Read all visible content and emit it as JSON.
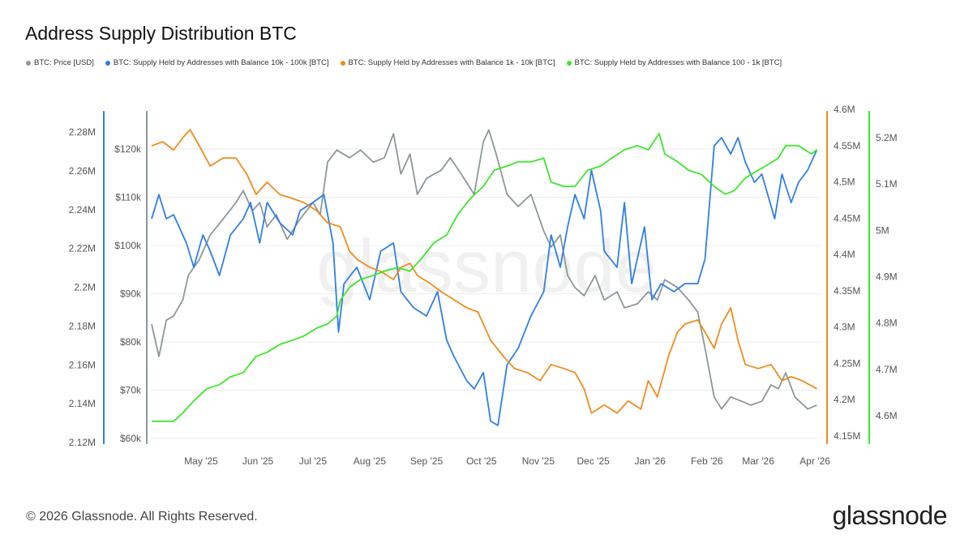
{
  "title": "Address Supply Distribution BTC",
  "footer": "© 2026 Glassnode. All Rights Reserved.",
  "logo": "glassnode",
  "watermark": "glassnode",
  "chart_data": {
    "type": "line",
    "title": "Address Supply Distribution BTC",
    "x_start_date": "2025-04-04",
    "x_unit": "days since start",
    "xlim": [
      0,
      364
    ],
    "x_ticks": [
      {
        "day": 27,
        "label": "May '25"
      },
      {
        "day": 58,
        "label": "Jun '25"
      },
      {
        "day": 88,
        "label": "Jul '25"
      },
      {
        "day": 119,
        "label": "Aug '25"
      },
      {
        "day": 150,
        "label": "Sep '25"
      },
      {
        "day": 180,
        "label": "Oct '25"
      },
      {
        "day": 211,
        "label": "Nov '25"
      },
      {
        "day": 241,
        "label": "Dec '25"
      },
      {
        "day": 272,
        "label": "Jan '26"
      },
      {
        "day": 303,
        "label": "Feb '26"
      },
      {
        "day": 331,
        "label": "Mar '26"
      },
      {
        "day": 362,
        "label": "Apr '26"
      }
    ],
    "axes": {
      "blue": {
        "ylim": [
          2.12,
          2.28
        ],
        "ticks": [
          2.12,
          2.14,
          2.16,
          2.18,
          2.2,
          2.22,
          2.24,
          2.26,
          2.28
        ],
        "labels": [
          "2.12M",
          "2.14M",
          "2.16M",
          "2.18M",
          "2.2M",
          "2.22M",
          "2.24M",
          "2.26M",
          "2.28M"
        ],
        "side": "left-outer"
      },
      "price": {
        "ylim": [
          60,
          120
        ],
        "ticks": [
          60,
          70,
          80,
          90,
          100,
          110,
          120
        ],
        "labels": [
          "$60k",
          "$70k",
          "$80k",
          "$90k",
          "$100k",
          "$110k",
          "$120k"
        ],
        "side": "left-inner"
      },
      "orange": {
        "ylim": [
          4.15,
          4.6
        ],
        "ticks": [
          4.15,
          4.2,
          4.25,
          4.3,
          4.35,
          4.4,
          4.45,
          4.5,
          4.55,
          4.6
        ],
        "labels": [
          "4.15M",
          "4.2M",
          "4.25M",
          "4.3M",
          "4.35M",
          "4.4M",
          "4.45M",
          "4.5M",
          "4.55M",
          "4.6M"
        ],
        "side": "right-inner"
      },
      "green": {
        "ylim": [
          4.6,
          5.2
        ],
        "ticks": [
          4.6,
          4.7,
          4.8,
          4.9,
          5.0,
          5.1,
          5.2
        ],
        "labels": [
          "4.6M",
          "4.7M",
          "4.8M",
          "4.9M",
          "5M",
          "5.1M",
          "5.2M"
        ],
        "side": "right-outer"
      }
    },
    "legend_placement": "top-left",
    "series": [
      {
        "name": "BTC: Price [USD]",
        "axis": "price",
        "color": "#8d979c",
        "points": [
          [
            0,
            83.7
          ],
          [
            4,
            77.0
          ],
          [
            8,
            84.5
          ],
          [
            12,
            85.4
          ],
          [
            17,
            88.7
          ],
          [
            20,
            93.8
          ],
          [
            26,
            97.1
          ],
          [
            32,
            102.2
          ],
          [
            39,
            105.5
          ],
          [
            46,
            108.9
          ],
          [
            50,
            111.4
          ],
          [
            55,
            107.2
          ],
          [
            59,
            108.9
          ],
          [
            63,
            103.9
          ],
          [
            68,
            106.4
          ],
          [
            74,
            101.3
          ],
          [
            81,
            105.5
          ],
          [
            88,
            108.9
          ],
          [
            92,
            106.4
          ],
          [
            96,
            117.3
          ],
          [
            101,
            119.8
          ],
          [
            108,
            118.2
          ],
          [
            114,
            119.8
          ],
          [
            121,
            117.3
          ],
          [
            127,
            118.2
          ],
          [
            132,
            123.2
          ],
          [
            136,
            114.8
          ],
          [
            141,
            119.0
          ],
          [
            145,
            110.6
          ],
          [
            150,
            113.9
          ],
          [
            154,
            114.8
          ],
          [
            158,
            115.6
          ],
          [
            163,
            118.2
          ],
          [
            169,
            114.8
          ],
          [
            176,
            110.6
          ],
          [
            181,
            121.5
          ],
          [
            184,
            124.0
          ],
          [
            188,
            119.0
          ],
          [
            194,
            110.6
          ],
          [
            200,
            108.1
          ],
          [
            207,
            110.6
          ],
          [
            214,
            103.0
          ],
          [
            218,
            99.7
          ],
          [
            223,
            102.2
          ],
          [
            227,
            93.8
          ],
          [
            231,
            91.3
          ],
          [
            236,
            89.6
          ],
          [
            242,
            93.8
          ],
          [
            247,
            88.7
          ],
          [
            254,
            90.4
          ],
          [
            258,
            87.1
          ],
          [
            265,
            87.9
          ],
          [
            271,
            90.4
          ],
          [
            276,
            88.7
          ],
          [
            280,
            92.9
          ],
          [
            287,
            91.3
          ],
          [
            293,
            88.7
          ],
          [
            298,
            86.2
          ],
          [
            302,
            78.7
          ],
          [
            307,
            68.6
          ],
          [
            311,
            66.1
          ],
          [
            316,
            68.6
          ],
          [
            322,
            67.7
          ],
          [
            327,
            66.9
          ],
          [
            333,
            67.7
          ],
          [
            338,
            71.1
          ],
          [
            342,
            70.3
          ],
          [
            346,
            73.6
          ],
          [
            351,
            68.6
          ],
          [
            358,
            66.1
          ],
          [
            363,
            66.9
          ]
        ]
      },
      {
        "name": "BTC: Supply Held by Addresses with Balance 10k - 100k [BTC]",
        "axis": "blue",
        "color": "#2f7fe6",
        "points": [
          [
            0,
            2.2353
          ],
          [
            4,
            2.2478
          ],
          [
            8,
            2.2353
          ],
          [
            12,
            2.2374
          ],
          [
            19,
            2.2228
          ],
          [
            23,
            2.2103
          ],
          [
            28,
            2.227
          ],
          [
            32,
            2.2186
          ],
          [
            37,
            2.2061
          ],
          [
            43,
            2.227
          ],
          [
            50,
            2.2353
          ],
          [
            54,
            2.2437
          ],
          [
            59,
            2.2228
          ],
          [
            63,
            2.2437
          ],
          [
            70,
            2.2332
          ],
          [
            77,
            2.227
          ],
          [
            81,
            2.2395
          ],
          [
            88,
            2.2437
          ],
          [
            94,
            2.2478
          ],
          [
            99,
            2.2228
          ],
          [
            102,
            2.1769
          ],
          [
            105,
            2.2019
          ],
          [
            112,
            2.2103
          ],
          [
            119,
            2.1936
          ],
          [
            125,
            2.2186
          ],
          [
            132,
            2.2228
          ],
          [
            136,
            2.1977
          ],
          [
            143,
            2.1894
          ],
          [
            150,
            2.1852
          ],
          [
            156,
            2.1977
          ],
          [
            161,
            2.1727
          ],
          [
            165,
            2.1643
          ],
          [
            172,
            2.1518
          ],
          [
            176,
            2.1476
          ],
          [
            181,
            2.156
          ],
          [
            185,
            2.1309
          ],
          [
            189,
            2.1288
          ],
          [
            194,
            2.1601
          ],
          [
            200,
            2.1685
          ],
          [
            207,
            2.1852
          ],
          [
            214,
            2.1977
          ],
          [
            218,
            2.227
          ],
          [
            223,
            2.2103
          ],
          [
            227,
            2.2311
          ],
          [
            231,
            2.2478
          ],
          [
            236,
            2.2353
          ],
          [
            240,
            2.2604
          ],
          [
            245,
            2.2395
          ],
          [
            247,
            2.2186
          ],
          [
            254,
            2.2103
          ],
          [
            258,
            2.2437
          ],
          [
            262,
            2.2019
          ],
          [
            269,
            2.2311
          ],
          [
            273,
            2.1936
          ],
          [
            278,
            2.2019
          ],
          [
            285,
            2.1977
          ],
          [
            291,
            2.2019
          ],
          [
            298,
            2.2019
          ],
          [
            302,
            2.2145
          ],
          [
            307,
            2.2729
          ],
          [
            311,
            2.2771
          ],
          [
            316,
            2.2687
          ],
          [
            320,
            2.2771
          ],
          [
            324,
            2.2645
          ],
          [
            329,
            2.2541
          ],
          [
            333,
            2.2583
          ],
          [
            340,
            2.2353
          ],
          [
            344,
            2.2583
          ],
          [
            349,
            2.2437
          ],
          [
            353,
            2.2541
          ],
          [
            358,
            2.2604
          ],
          [
            363,
            2.2708
          ]
        ]
      },
      {
        "name": "BTC: Supply Held by Addresses with Balance 1k - 10k [BTC]",
        "axis": "orange",
        "color": "#f08c1e",
        "points": [
          [
            0,
            4.5498
          ],
          [
            6,
            4.5554
          ],
          [
            12,
            4.5442
          ],
          [
            17,
            4.5609
          ],
          [
            21,
            4.5721
          ],
          [
            26,
            4.5498
          ],
          [
            32,
            4.5219
          ],
          [
            39,
            4.533
          ],
          [
            46,
            4.533
          ],
          [
            52,
            4.5107
          ],
          [
            57,
            4.4828
          ],
          [
            63,
            4.4996
          ],
          [
            70,
            4.4828
          ],
          [
            77,
            4.4772
          ],
          [
            83,
            4.4717
          ],
          [
            90,
            4.4605
          ],
          [
            96,
            4.4438
          ],
          [
            103,
            4.4382
          ],
          [
            108,
            4.4047
          ],
          [
            112,
            4.3935
          ],
          [
            119,
            4.3824
          ],
          [
            125,
            4.3768
          ],
          [
            132,
            4.3656
          ],
          [
            136,
            4.3824
          ],
          [
            141,
            4.388
          ],
          [
            145,
            4.3712
          ],
          [
            152,
            4.3601
          ],
          [
            158,
            4.3489
          ],
          [
            165,
            4.3377
          ],
          [
            172,
            4.3266
          ],
          [
            178,
            4.321
          ],
          [
            185,
            4.2819
          ],
          [
            192,
            4.2596
          ],
          [
            198,
            4.2429
          ],
          [
            205,
            4.2373
          ],
          [
            212,
            4.2261
          ],
          [
            218,
            4.2485
          ],
          [
            225,
            4.2429
          ],
          [
            231,
            4.2373
          ],
          [
            236,
            4.215
          ],
          [
            240,
            4.1815
          ],
          [
            247,
            4.1927
          ],
          [
            254,
            4.1815
          ],
          [
            260,
            4.1982
          ],
          [
            267,
            4.1871
          ],
          [
            271,
            4.2261
          ],
          [
            276,
            4.2038
          ],
          [
            282,
            4.2596
          ],
          [
            287,
            4.2931
          ],
          [
            291,
            4.3042
          ],
          [
            298,
            4.3098
          ],
          [
            302,
            4.2931
          ],
          [
            307,
            4.2708
          ],
          [
            311,
            4.3042
          ],
          [
            316,
            4.3266
          ],
          [
            320,
            4.2819
          ],
          [
            324,
            4.2485
          ],
          [
            331,
            4.2429
          ],
          [
            338,
            4.2485
          ],
          [
            344,
            4.2261
          ],
          [
            349,
            4.2317
          ],
          [
            355,
            4.2261
          ],
          [
            363,
            4.215
          ]
        ]
      },
      {
        "name": "BTC: Supply Held by Addresses with Balance 100 - 1k [BTC]",
        "axis": "green",
        "color": "#3de62a",
        "points": [
          [
            0,
            4.588
          ],
          [
            6,
            4.588
          ],
          [
            12,
            4.588
          ],
          [
            17,
            4.606
          ],
          [
            23,
            4.632
          ],
          [
            30,
            4.658
          ],
          [
            37,
            4.667
          ],
          [
            43,
            4.684
          ],
          [
            50,
            4.693
          ],
          [
            57,
            4.728
          ],
          [
            63,
            4.737
          ],
          [
            70,
            4.754
          ],
          [
            77,
            4.763
          ],
          [
            83,
            4.772
          ],
          [
            90,
            4.789
          ],
          [
            96,
            4.798
          ],
          [
            101,
            4.815
          ],
          [
            103,
            4.85
          ],
          [
            108,
            4.877
          ],
          [
            114,
            4.894
          ],
          [
            121,
            4.903
          ],
          [
            127,
            4.912
          ],
          [
            134,
            4.92
          ],
          [
            141,
            4.912
          ],
          [
            147,
            4.938
          ],
          [
            154,
            4.973
          ],
          [
            161,
            4.99
          ],
          [
            167,
            5.034
          ],
          [
            174,
            5.069
          ],
          [
            181,
            5.095
          ],
          [
            187,
            5.13
          ],
          [
            194,
            5.139
          ],
          [
            200,
            5.148
          ],
          [
            207,
            5.148
          ],
          [
            214,
            5.156
          ],
          [
            218,
            5.104
          ],
          [
            225,
            5.095
          ],
          [
            231,
            5.095
          ],
          [
            238,
            5.13
          ],
          [
            245,
            5.139
          ],
          [
            251,
            5.156
          ],
          [
            258,
            5.174
          ],
          [
            265,
            5.183
          ],
          [
            271,
            5.174
          ],
          [
            277,
            5.209
          ],
          [
            280,
            5.165
          ],
          [
            287,
            5.148
          ],
          [
            293,
            5.13
          ],
          [
            300,
            5.121
          ],
          [
            307,
            5.095
          ],
          [
            313,
            5.078
          ],
          [
            318,
            5.086
          ],
          [
            324,
            5.113
          ],
          [
            331,
            5.13
          ],
          [
            335,
            5.139
          ],
          [
            342,
            5.156
          ],
          [
            346,
            5.183
          ],
          [
            353,
            5.183
          ],
          [
            360,
            5.165
          ],
          [
            363,
            5.174
          ]
        ]
      }
    ]
  }
}
